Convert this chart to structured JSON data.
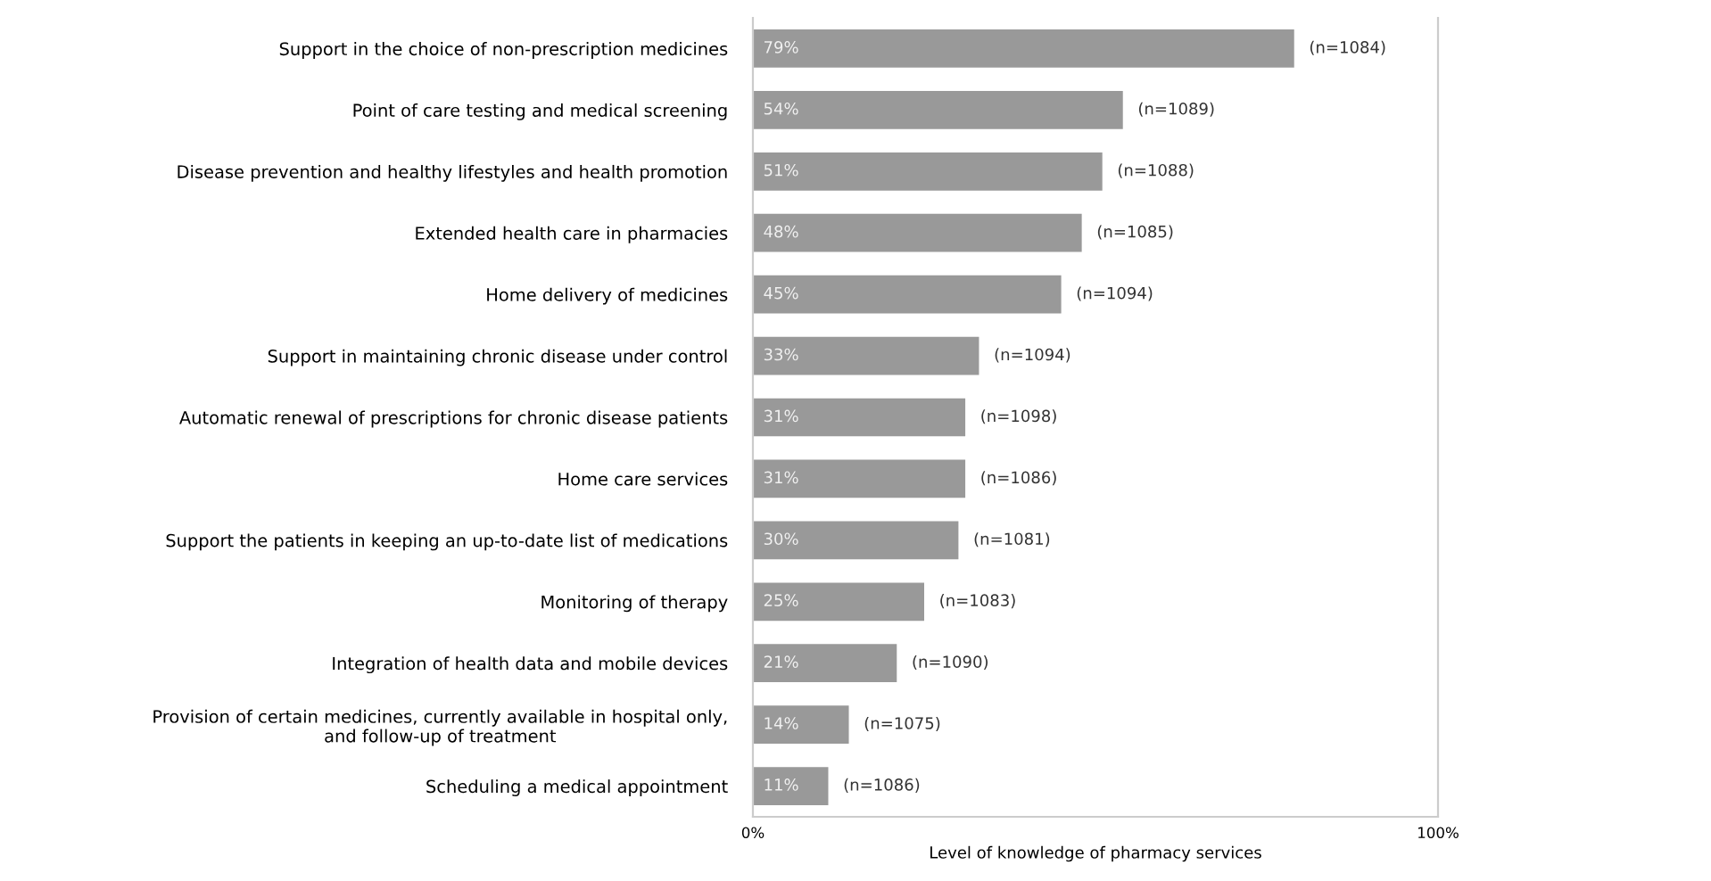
{
  "chart_data": {
    "type": "bar",
    "orientation": "horizontal",
    "xlabel": "Level of knowledge of pharmacy services",
    "categories": [
      "Support in the choice of non-prescription medicines",
      "Point of care testing and medical screening",
      "Disease prevention and healthy lifestyles and health promotion",
      "Extended health care in pharmacies",
      "Home delivery of medicines",
      "Support in maintaining chronic disease under control",
      "Automatic renewal of prescriptions for chronic disease patients",
      "Home care services",
      "Support the patients in keeping an up-to-date list of medications",
      "Monitoring of therapy",
      "Integration of health data and mobile devices",
      "Provision of certain medicines, currently available in hospital only,\nand follow-up of treatment",
      "Scheduling a medical appointment"
    ],
    "values": [
      79,
      54,
      51,
      48,
      45,
      33,
      31,
      31,
      30,
      25,
      21,
      14,
      11
    ],
    "value_labels": [
      "79%",
      "54%",
      "51%",
      "48%",
      "45%",
      "33%",
      "31%",
      "31%",
      "30%",
      "25%",
      "21%",
      "14%",
      "11%"
    ],
    "color": "#999999",
    "xlim": [
      0,
      100
    ],
    "xticks": [
      {
        "value": 0,
        "label": "0%"
      },
      {
        "value": 100,
        "label": "100%"
      }
    ],
    "grid": false,
    "legend": false,
    "annotations": [
      {
        "text": "(n=1084)",
        "x": 79,
        "y": "Support in the choice of non-prescription medicines"
      },
      {
        "text": "(n=1089)",
        "x": 54,
        "y": "Point of care testing and medical screening"
      },
      {
        "text": "(n=1088)",
        "x": 51,
        "y": "Disease prevention and healthy lifestyles and health promotion"
      },
      {
        "text": "(n=1085)",
        "x": 48,
        "y": "Extended health care in pharmacies"
      },
      {
        "text": "(n=1094)",
        "x": 45,
        "y": "Home delivery of medicines"
      },
      {
        "text": "(n=1094)",
        "x": 33,
        "y": "Support in maintaining chronic disease under control"
      },
      {
        "text": "(n=1098)",
        "x": 31,
        "y": "Automatic renewal of prescriptions for chronic disease patients"
      },
      {
        "text": "(n=1086)",
        "x": 31,
        "y": "Home care services"
      },
      {
        "text": "(n=1081)",
        "x": 30,
        "y": "Support the patients in keeping an up-to-date list of medications"
      },
      {
        "text": "(n=1083)",
        "x": 25,
        "y": "Monitoring of therapy"
      },
      {
        "text": "(n=1090)",
        "x": 21,
        "y": "Integration of health data and mobile devices"
      },
      {
        "text": "(n=1075)",
        "x": 14,
        "y": "Provision of certain medicines, currently available in hospital only,\nand follow-up of treatment"
      },
      {
        "text": "(n=1086)",
        "x": 11,
        "y": "Scheduling a medical appointment"
      }
    ]
  }
}
